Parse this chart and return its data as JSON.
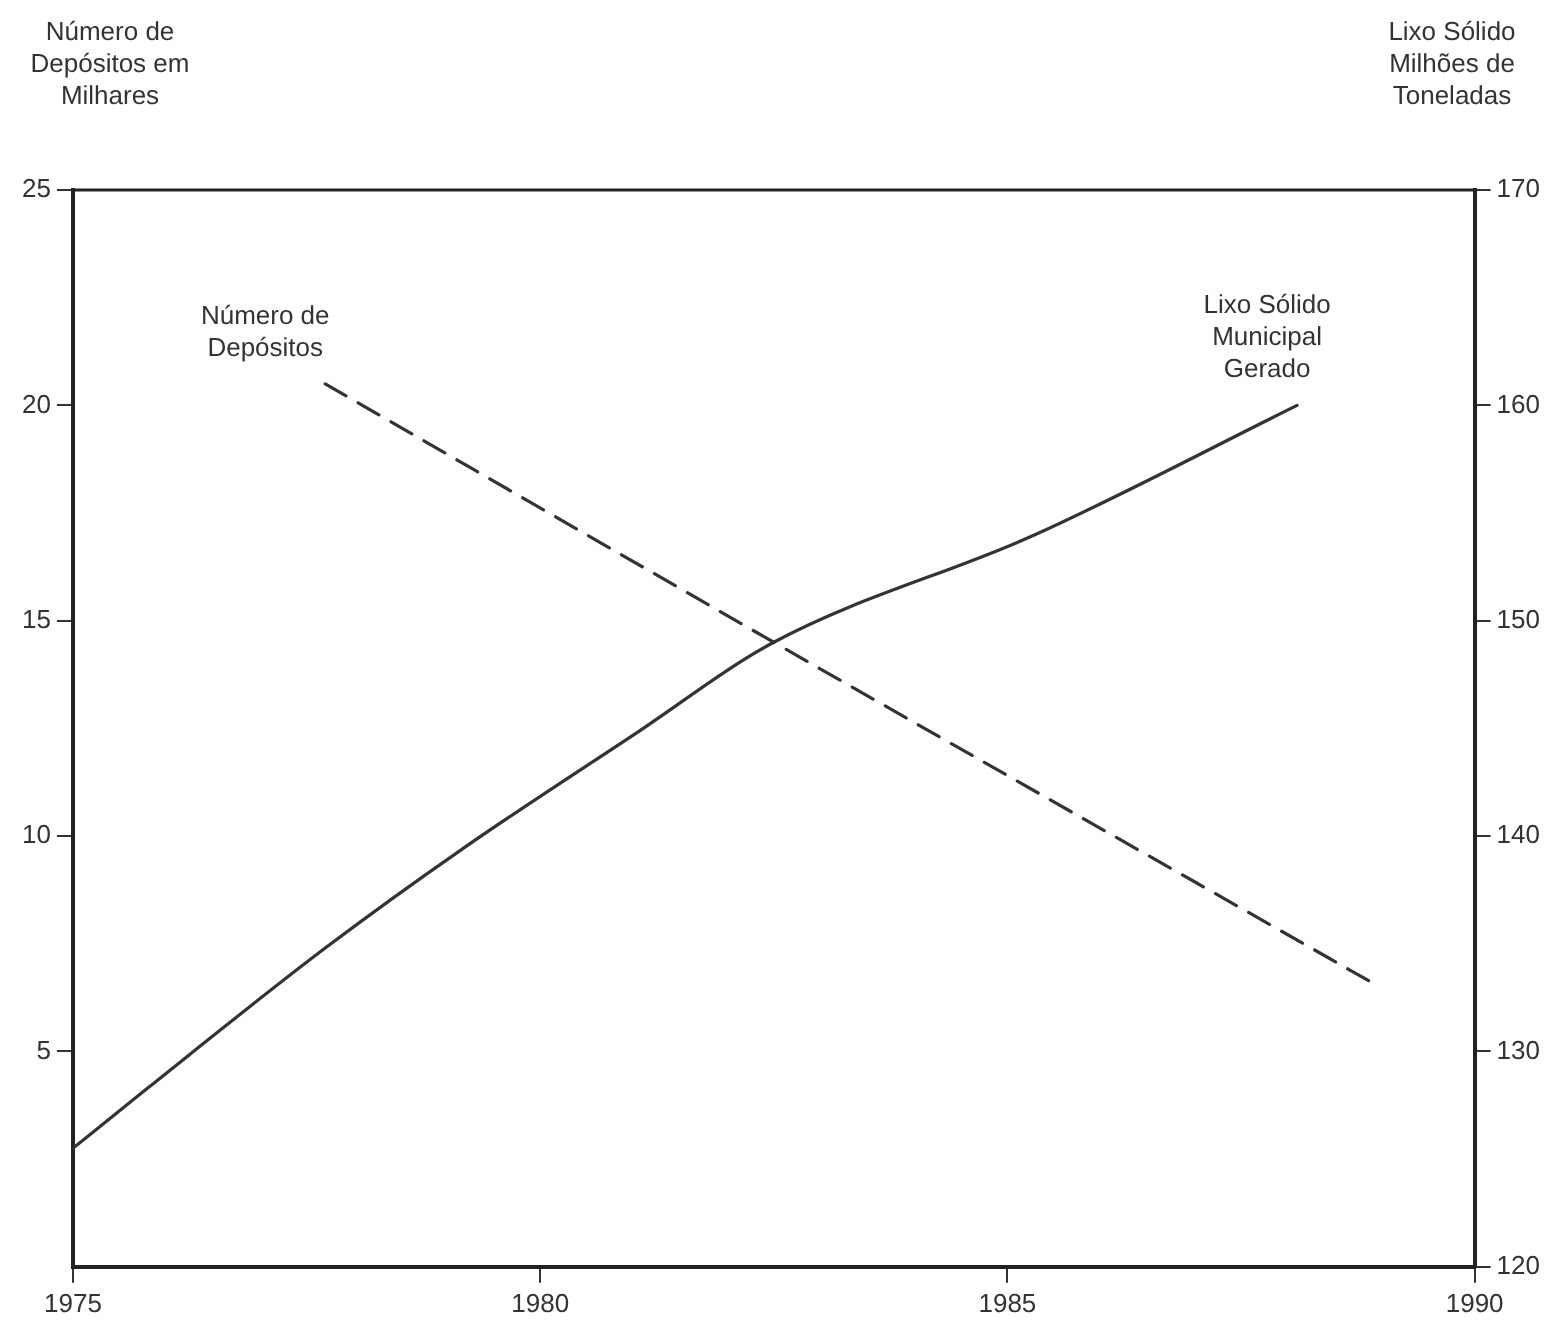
{
  "chart_data": {
    "type": "line",
    "ylabel": "Número de Depósitos em Milhares",
    "y2label": "Lixo Sólido Milhões de Toneladas",
    "xlim": [
      1975,
      1990
    ],
    "xticks": [
      1975,
      1980,
      1985,
      1990
    ],
    "ylim": [
      0,
      25
    ],
    "yticks": [
      5,
      10,
      15,
      20,
      25
    ],
    "y2lim": [
      120,
      170
    ],
    "y2ticks": [
      120,
      130,
      140,
      150,
      160,
      170
    ],
    "legend": false,
    "series": [
      {
        "name": "Número de Depósitos",
        "color": "#333333",
        "line_style": "dashed",
        "x": [
          1977.7,
          1982.5,
          1988.9
        ],
        "values": [
          20.5,
          14.5,
          6.6
        ]
      },
      {
        "name": "Lixo Sólido Municipal Gerado",
        "color": "#333333",
        "line_style": "solid",
        "axis": "y2",
        "x": [
          1975,
          1975.8,
          1977.7,
          1979.2,
          1981,
          1982.5,
          1985.3,
          1988.1
        ],
        "values": [
          125.5,
          128.3,
          134.8,
          139.5,
          144.7,
          149,
          154,
          160
        ]
      }
    ]
  }
}
